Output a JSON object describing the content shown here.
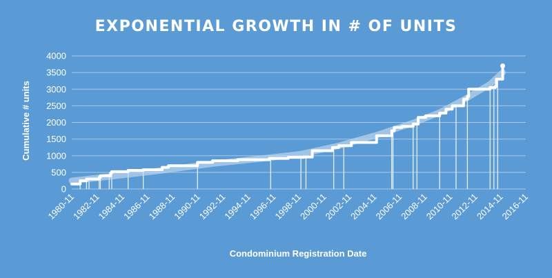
{
  "chart_data": {
    "type": "line",
    "title": "EXPONENTIAL  GROWTH IN # OF UNITS",
    "xlabel": "Condominium Registration Date",
    "ylabel": "Cumulative # units",
    "x_tick_labels": [
      "1980-11",
      "1982-11",
      "1984-11",
      "1986-11",
      "1988-11",
      "1990-11",
      "1992-11",
      "1994-11",
      "1996-11",
      "1998-11",
      "2000-11",
      "2002-11",
      "2004-11",
      "2006-11",
      "2008-11",
      "2010-11",
      "2012-11",
      "2014-11",
      "2016-11"
    ],
    "y_tick_labels": [
      "0",
      "500",
      "1000",
      "1500",
      "2000",
      "2500",
      "3000",
      "3500",
      "4000"
    ],
    "xlim": [
      1980.83,
      2016.83
    ],
    "ylim": [
      0,
      4000
    ],
    "grid": true,
    "colors": {
      "background": "#5b9bd5",
      "series": "#ffffff",
      "trend": "#c5daf0",
      "grid": "#a9c9ea"
    },
    "series": [
      {
        "type": "step",
        "x": [
          1980.83,
          1981.5,
          1982.0,
          1983.0,
          1983.1,
          1983.9,
          1984.0,
          1985.3,
          1986.5,
          1988.0,
          1988.5,
          1990.8,
          1992.0,
          1994.0,
          1996.5,
          1998.0,
          1999.2,
          1999.9,
          2001.5,
          2002.0,
          2003.0,
          2005.0,
          2006.2,
          2006.4,
          2007.0,
          2007.9,
          2008.3,
          2008.9,
          2010.0,
          2010.5,
          2011.0,
          2011.9,
          2012.2,
          2012.3,
          2014.0,
          2014.4,
          2014.5,
          2015.0
        ],
        "y": [
          150,
          250,
          300,
          350,
          400,
          480,
          520,
          560,
          580,
          650,
          700,
          800,
          850,
          880,
          920,
          950,
          960,
          1150,
          1250,
          1300,
          1400,
          1600,
          1750,
          1850,
          1880,
          1950,
          2150,
          2200,
          2280,
          2400,
          2500,
          2700,
          2780,
          3000,
          3050,
          3080,
          3300,
          3700
        ]
      },
      {
        "type": "trend",
        "x": [
          1980.83,
          1984.0,
          1988.0,
          1992.0,
          1996.0,
          1999.0,
          2002.0,
          2005.0,
          2008.0,
          2010.0,
          2012.0,
          2014.0,
          2015.0
        ],
        "y": [
          250,
          380,
          560,
          760,
          920,
          1050,
          1300,
          1620,
          2000,
          2300,
          2700,
          3150,
          3500
        ]
      }
    ],
    "drop_lines_x": [
      1981.5,
      1982.0,
      1982.2,
      1983.0,
      1983.1,
      1983.8,
      1984.0,
      1985.3,
      1986.5,
      1990.8,
      1996.6,
      1999.0,
      1999.4,
      2001.6,
      2002.4,
      2006.2,
      2006.3,
      2007.9,
      2008.2,
      2010.0,
      2011.3,
      2012.2,
      2014.0,
      2014.3,
      2014.6
    ]
  }
}
